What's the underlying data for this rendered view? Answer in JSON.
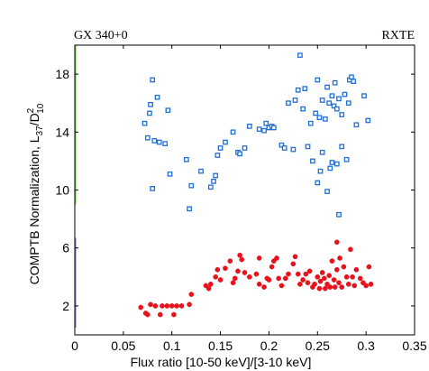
{
  "chart_data": {
    "type": "scatter",
    "title_left": "GX 340+0",
    "title_right": "RXTE",
    "xlabel": "Flux ratio [10-50 keV]/[3-10 keV]",
    "ylabel": {
      "base": "COMPTB Normalization, L",
      "sub1": "37",
      "mid": "/D",
      "sup": "2",
      "sub2": "10"
    },
    "xlim": [
      0,
      0.35
    ],
    "ylim": [
      0,
      20
    ],
    "xticks": [
      {
        "value": 0,
        "label": "0"
      },
      {
        "value": 0.05,
        "label": "0.05"
      },
      {
        "value": 0.1,
        "label": "0.1"
      },
      {
        "value": 0.15,
        "label": "0.15"
      },
      {
        "value": 0.2,
        "label": "0.2"
      },
      {
        "value": 0.25,
        "label": "0.25"
      },
      {
        "value": 0.3,
        "label": "0.3"
      },
      {
        "value": 0.35,
        "label": "0.35"
      }
    ],
    "yticks": [
      {
        "value": 2,
        "label": "2"
      },
      {
        "value": 6,
        "label": "6"
      },
      {
        "value": 10,
        "label": "10"
      },
      {
        "value": 14,
        "label": "14"
      },
      {
        "value": 18,
        "label": "18"
      }
    ],
    "axis_color_bands": [
      {
        "from": 0.5,
        "to": 6.7,
        "color": "#7777dd"
      },
      {
        "from": 9.0,
        "to": 20,
        "color": "#66cc44"
      }
    ],
    "grid": false,
    "series": [
      {
        "marker": "square",
        "color": "#1f6fd6",
        "points": [
          [
            0.072,
            14.6
          ],
          [
            0.075,
            13.6
          ],
          [
            0.077,
            15.3
          ],
          [
            0.078,
            15.9
          ],
          [
            0.08,
            17.6
          ],
          [
            0.08,
            10.1
          ],
          [
            0.082,
            13.4
          ],
          [
            0.085,
            16.4
          ],
          [
            0.087,
            13.3
          ],
          [
            0.093,
            13.2
          ],
          [
            0.096,
            15.5
          ],
          [
            0.098,
            11.1
          ],
          [
            0.115,
            12.1
          ],
          [
            0.118,
            8.7
          ],
          [
            0.12,
            10.3
          ],
          [
            0.13,
            11.3
          ],
          [
            0.14,
            10.2
          ],
          [
            0.143,
            10.6
          ],
          [
            0.145,
            11.0
          ],
          [
            0.147,
            12.4
          ],
          [
            0.15,
            12.9
          ],
          [
            0.155,
            13.3
          ],
          [
            0.163,
            14.0
          ],
          [
            0.168,
            12.6
          ],
          [
            0.17,
            12.5
          ],
          [
            0.175,
            12.9
          ],
          [
            0.18,
            14.4
          ],
          [
            0.19,
            14.2
          ],
          [
            0.195,
            14.1
          ],
          [
            0.197,
            14.6
          ],
          [
            0.2,
            14.3
          ],
          [
            0.203,
            14.4
          ],
          [
            0.205,
            14.3
          ],
          [
            0.213,
            13.1
          ],
          [
            0.216,
            12.9
          ],
          [
            0.22,
            16.0
          ],
          [
            0.225,
            12.8
          ],
          [
            0.227,
            16.2
          ],
          [
            0.23,
            16.9
          ],
          [
            0.232,
            19.3
          ],
          [
            0.235,
            15.6
          ],
          [
            0.237,
            17.0
          ],
          [
            0.24,
            13.0
          ],
          [
            0.243,
            14.6
          ],
          [
            0.245,
            12.0
          ],
          [
            0.248,
            15.3
          ],
          [
            0.25,
            17.6
          ],
          [
            0.25,
            10.5
          ],
          [
            0.252,
            15.0
          ],
          [
            0.253,
            11.3
          ],
          [
            0.255,
            12.6
          ],
          [
            0.255,
            16.2
          ],
          [
            0.258,
            14.9
          ],
          [
            0.26,
            17.1
          ],
          [
            0.26,
            9.9
          ],
          [
            0.262,
            16.0
          ],
          [
            0.263,
            11.5
          ],
          [
            0.265,
            16.5
          ],
          [
            0.265,
            11.9
          ],
          [
            0.267,
            15.8
          ],
          [
            0.268,
            17.4
          ],
          [
            0.27,
            15.6
          ],
          [
            0.27,
            11.8
          ],
          [
            0.272,
            16.3
          ],
          [
            0.272,
            8.3
          ],
          [
            0.275,
            15.2
          ],
          [
            0.275,
            13.0
          ],
          [
            0.278,
            16.6
          ],
          [
            0.28,
            12.1
          ],
          [
            0.282,
            16.0
          ],
          [
            0.283,
            17.6
          ],
          [
            0.285,
            17.8
          ],
          [
            0.287,
            17.5
          ],
          [
            0.29,
            14.5
          ],
          [
            0.298,
            16.5
          ],
          [
            0.302,
            14.8
          ]
        ]
      },
      {
        "marker": "circle",
        "color": "#e8121d",
        "points": [
          [
            0.068,
            1.9
          ],
          [
            0.073,
            1.5
          ],
          [
            0.075,
            1.4
          ],
          [
            0.078,
            2.1
          ],
          [
            0.083,
            2.0
          ],
          [
            0.088,
            1.4
          ],
          [
            0.09,
            2.0
          ],
          [
            0.095,
            2.0
          ],
          [
            0.1,
            2.0
          ],
          [
            0.102,
            1.4
          ],
          [
            0.105,
            2.0
          ],
          [
            0.11,
            2.0
          ],
          [
            0.118,
            2.1
          ],
          [
            0.12,
            2.8
          ],
          [
            0.135,
            3.4
          ],
          [
            0.138,
            3.2
          ],
          [
            0.14,
            3.5
          ],
          [
            0.145,
            4.0
          ],
          [
            0.147,
            4.5
          ],
          [
            0.15,
            3.8
          ],
          [
            0.155,
            4.6
          ],
          [
            0.16,
            5.1
          ],
          [
            0.163,
            3.6
          ],
          [
            0.165,
            3.9
          ],
          [
            0.168,
            4.4
          ],
          [
            0.17,
            5.5
          ],
          [
            0.172,
            5.2
          ],
          [
            0.175,
            4.3
          ],
          [
            0.18,
            4.0
          ],
          [
            0.187,
            4.2
          ],
          [
            0.19,
            3.5
          ],
          [
            0.19,
            5.3
          ],
          [
            0.195,
            3.3
          ],
          [
            0.198,
            3.9
          ],
          [
            0.2,
            3.8
          ],
          [
            0.203,
            4.7
          ],
          [
            0.205,
            5.1
          ],
          [
            0.208,
            5.3
          ],
          [
            0.21,
            3.9
          ],
          [
            0.213,
            3.4
          ],
          [
            0.217,
            3.9
          ],
          [
            0.22,
            4.2
          ],
          [
            0.225,
            4.9
          ],
          [
            0.227,
            5.4
          ],
          [
            0.23,
            4.2
          ],
          [
            0.232,
            3.5
          ],
          [
            0.235,
            3.8
          ],
          [
            0.238,
            4.2
          ],
          [
            0.24,
            3.6
          ],
          [
            0.242,
            4.4
          ],
          [
            0.245,
            3.3
          ],
          [
            0.247,
            3.5
          ],
          [
            0.25,
            4.0
          ],
          [
            0.252,
            3.2
          ],
          [
            0.253,
            3.7
          ],
          [
            0.255,
            4.3
          ],
          [
            0.257,
            3.9
          ],
          [
            0.258,
            3.2
          ],
          [
            0.26,
            3.5
          ],
          [
            0.262,
            4.1
          ],
          [
            0.263,
            3.3
          ],
          [
            0.265,
            5.1
          ],
          [
            0.267,
            3.8
          ],
          [
            0.268,
            3.3
          ],
          [
            0.27,
            6.4
          ],
          [
            0.27,
            4.5
          ],
          [
            0.272,
            3.6
          ],
          [
            0.273,
            5.3
          ],
          [
            0.275,
            3.3
          ],
          [
            0.277,
            4.7
          ],
          [
            0.28,
            4.0
          ],
          [
            0.282,
            3.5
          ],
          [
            0.284,
            5.9
          ],
          [
            0.286,
            4.0
          ],
          [
            0.288,
            3.4
          ],
          [
            0.29,
            4.5
          ],
          [
            0.294,
            3.9
          ],
          [
            0.297,
            3.6
          ],
          [
            0.3,
            3.4
          ],
          [
            0.303,
            4.7
          ],
          [
            0.305,
            3.5
          ]
        ]
      }
    ]
  }
}
